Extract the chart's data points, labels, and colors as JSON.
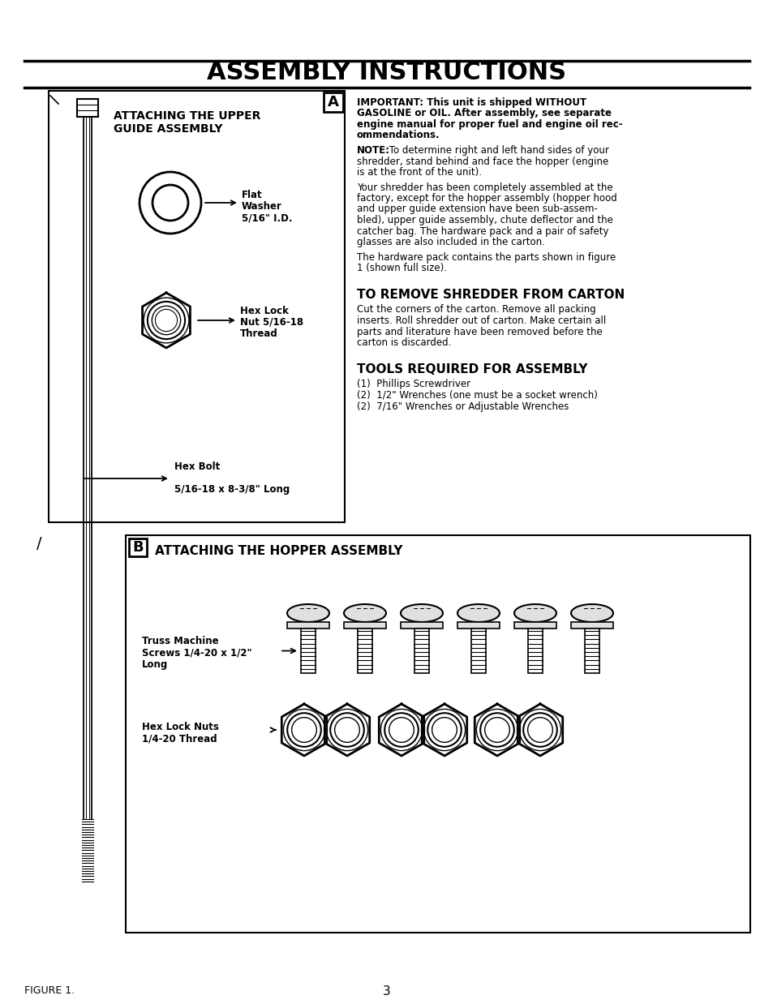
{
  "title": "ASSEMBLY INSTRUCTIONS",
  "page_bg": "#ffffff",
  "page_number": "3",
  "figure_label": "FIGURE 1.",
  "section_a_title_line1": "ATTACHING THE UPPER",
  "section_a_title_line2": "GUIDE ASSEMBLY",
  "section_a_label": "A",
  "flat_washer_label_lines": [
    "Flat",
    "Washer",
    "5/16\" I.D."
  ],
  "hex_nut_label_lines": [
    "Hex Lock",
    "Nut 5/16-18",
    "Thread"
  ],
  "hex_bolt_label_lines": [
    "Hex Bolt",
    "5/16-18 x 8-3/8\" Long"
  ],
  "imp_lines": [
    "IMPORTANT: This unit is shipped WITHOUT",
    "GASOLINE or OIL. After assembly, see separate",
    "engine manual for proper fuel and engine oil rec-",
    "ommendations."
  ],
  "note_line1": "NOTE:",
  "note_line1_rest": " To determine right and left hand sides of your",
  "note_lines_rest": [
    "shredder, stand behind and face the hopper (engine",
    "is at the front of the unit)."
  ],
  "body1_lines": [
    "Your shredder has been completely assembled at the",
    "factory, except for the hopper assembly (hopper hood",
    "and upper guide extension have been sub-assem-",
    "bled), upper guide assembly, chute deflector and the",
    "catcher bag. The hardware pack and a pair of safety",
    "glasses are also included in the carton."
  ],
  "body2_lines": [
    "The hardware pack contains the parts shown in figure",
    "1 (shown full size)."
  ],
  "remove_title": "TO REMOVE SHREDDER FROM CARTON",
  "remove_lines": [
    "Cut the corners of the carton. Remove all packing",
    "inserts. Roll shredder out of carton. Make certain all",
    "parts and literature have been removed before the",
    "carton is discarded."
  ],
  "tools_title": "TOOLS REQUIRED FOR ASSEMBLY",
  "tools_items": [
    "(1)  Phillips Screwdriver",
    "(2)  1/2\" Wrenches (one must be a socket wrench)",
    "(2)  7/16\" Wrenches or Adjustable Wrenches"
  ],
  "section_b_label": "B",
  "section_b_title": "ATTACHING THE HOPPER ASSEMBLY",
  "truss_label_lines": [
    "Truss Machine",
    "Screws 1/4-20 x 1/2\"",
    "Long"
  ],
  "hex_lock_label_lines": [
    "Hex Lock Nuts",
    "1/4-20 Thread"
  ]
}
